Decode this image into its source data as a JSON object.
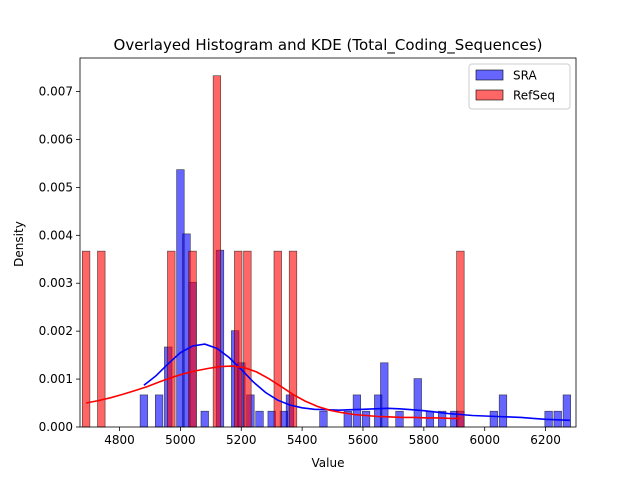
{
  "chart_data": {
    "type": "bar",
    "title": "Overlayed Histogram and KDE (Total_Coding_Sequences)",
    "xlabel": "Value",
    "ylabel": "Density",
    "xlim": [
      4670,
      6300
    ],
    "ylim": [
      0,
      0.0077
    ],
    "bin_width": 25,
    "xticks": [
      4800,
      5000,
      5200,
      5400,
      5600,
      5800,
      6000,
      6200
    ],
    "yticks": [
      0.0,
      0.001,
      0.002,
      0.003,
      0.004,
      0.005,
      0.006,
      0.007
    ],
    "ytick_labels": [
      "0.000",
      "0.001",
      "0.002",
      "0.003",
      "0.004",
      "0.005",
      "0.006",
      "0.007"
    ],
    "grid": false,
    "legend": "upper right",
    "series": [
      {
        "name": "SRA",
        "color": "#0000ff",
        "bins": [
          {
            "x": 4880,
            "value": 0.00067
          },
          {
            "x": 4930,
            "value": 0.00067
          },
          {
            "x": 4960,
            "value": 0.00167
          },
          {
            "x": 5000,
            "value": 0.00537
          },
          {
            "x": 5020,
            "value": 0.00403
          },
          {
            "x": 5040,
            "value": 0.00302
          },
          {
            "x": 5080,
            "value": 0.00033
          },
          {
            "x": 5130,
            "value": 0.00369
          },
          {
            "x": 5180,
            "value": 0.00201
          },
          {
            "x": 5200,
            "value": 0.00134
          },
          {
            "x": 5230,
            "value": 0.00067
          },
          {
            "x": 5260,
            "value": 0.00033
          },
          {
            "x": 5300,
            "value": 0.00033
          },
          {
            "x": 5340,
            "value": 0.00033
          },
          {
            "x": 5360,
            "value": 0.00067
          },
          {
            "x": 5470,
            "value": 0.00033
          },
          {
            "x": 5550,
            "value": 0.00033
          },
          {
            "x": 5580,
            "value": 0.00067
          },
          {
            "x": 5610,
            "value": 0.00033
          },
          {
            "x": 5650,
            "value": 0.00067
          },
          {
            "x": 5670,
            "value": 0.00134
          },
          {
            "x": 5720,
            "value": 0.00033
          },
          {
            "x": 5780,
            "value": 0.00101
          },
          {
            "x": 5820,
            "value": 0.00033
          },
          {
            "x": 5860,
            "value": 0.00033
          },
          {
            "x": 5900,
            "value": 0.00033
          },
          {
            "x": 5920,
            "value": 0.00033
          },
          {
            "x": 6030,
            "value": 0.00033
          },
          {
            "x": 6060,
            "value": 0.00067
          },
          {
            "x": 6210,
            "value": 0.00033
          },
          {
            "x": 6240,
            "value": 0.00033
          },
          {
            "x": 6270,
            "value": 0.00067
          }
        ],
        "kde": {
          "x": [
            4880,
            4920,
            4960,
            5000,
            5040,
            5080,
            5120,
            5160,
            5200,
            5240,
            5280,
            5320,
            5360,
            5400,
            5440,
            5480,
            5520,
            5560,
            5600,
            5640,
            5680,
            5720,
            5760,
            5800,
            5840,
            5880,
            5920,
            5960,
            6000,
            6040,
            6080,
            6120,
            6160,
            6200,
            6240,
            6280
          ],
          "y": [
            0.00087,
            0.00107,
            0.00132,
            0.00155,
            0.00169,
            0.00173,
            0.00164,
            0.00145,
            0.0012,
            0.00094,
            0.00072,
            0.00056,
            0.00046,
            0.0004,
            0.00037,
            0.00036,
            0.00035,
            0.00036,
            0.00037,
            0.00038,
            0.00039,
            0.00038,
            0.00036,
            0.00034,
            0.00031,
            0.00028,
            0.00026,
            0.00024,
            0.00023,
            0.00022,
            0.00021,
            0.0002,
            0.00018,
            0.00016,
            0.00015,
            0.00014
          ]
        }
      },
      {
        "name": "RefSeq",
        "color": "#ff0000",
        "bins": [
          {
            "x": 4690,
            "value": 0.00367
          },
          {
            "x": 4740,
            "value": 0.00367
          },
          {
            "x": 4970,
            "value": 0.00367
          },
          {
            "x": 5040,
            "value": 0.00367
          },
          {
            "x": 5120,
            "value": 0.00733
          },
          {
            "x": 5190,
            "value": 0.00367
          },
          {
            "x": 5220,
            "value": 0.00367
          },
          {
            "x": 5320,
            "value": 0.00367
          },
          {
            "x": 5370,
            "value": 0.00367
          },
          {
            "x": 5920,
            "value": 0.00367
          }
        ],
        "kde": {
          "x": [
            4690,
            4730,
            4770,
            4810,
            4850,
            4890,
            4930,
            4970,
            5010,
            5050,
            5090,
            5130,
            5170,
            5210,
            5250,
            5290,
            5330,
            5370,
            5410,
            5450,
            5490,
            5530,
            5570,
            5610,
            5650,
            5690,
            5730,
            5770,
            5810,
            5850,
            5890,
            5920
          ],
          "y": [
            0.0005,
            0.00055,
            0.00061,
            0.00068,
            0.00076,
            0.00084,
            0.00094,
            0.00103,
            0.00111,
            0.00117,
            0.00122,
            0.00126,
            0.00127,
            0.00124,
            0.00115,
            0.00101,
            0.00085,
            0.00068,
            0.00054,
            0.00043,
            0.00035,
            0.0003,
            0.00026,
            0.00024,
            0.00022,
            0.00021,
            0.0002,
            0.0002,
            0.00019,
            0.00019,
            0.00018,
            0.00018
          ]
        }
      }
    ]
  }
}
